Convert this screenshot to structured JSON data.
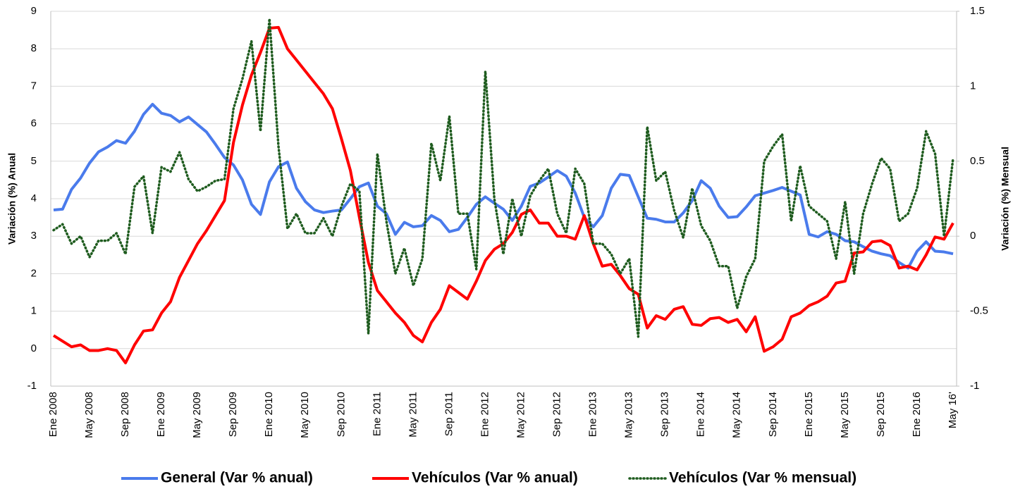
{
  "chart_data": {
    "type": "line",
    "categories": [
      "Ene 2008",
      null,
      null,
      null,
      "May 2008",
      null,
      null,
      null,
      "Sep 2008",
      null,
      null,
      null,
      "Ene 2009",
      null,
      null,
      null,
      "May 2009",
      null,
      null,
      null,
      "Sep 2009",
      null,
      null,
      null,
      "Ene 2010",
      null,
      null,
      null,
      "May 2010",
      null,
      null,
      null,
      "Sep 2010",
      null,
      null,
      null,
      "Ene 2011",
      null,
      null,
      null,
      "May 2011",
      null,
      null,
      null,
      "Sep 2011",
      null,
      null,
      null,
      "Ene 2012",
      null,
      null,
      null,
      "May 2012",
      null,
      null,
      null,
      "Sep 2012",
      null,
      null,
      null,
      "Ene 2013",
      null,
      null,
      null,
      "May 2013",
      null,
      null,
      null,
      "Sep 2013",
      null,
      null,
      null,
      "Ene 2014",
      null,
      null,
      null,
      "May 2014",
      null,
      null,
      null,
      "Sep 2014",
      null,
      null,
      null,
      "Ene 2015",
      null,
      null,
      null,
      "May 2015",
      null,
      null,
      null,
      "Sep 2015",
      null,
      null,
      null,
      "Ene 2016",
      null,
      null,
      null,
      "May 16'"
    ],
    "ylabel": "Variación (%) Anual",
    "y2label": "Variación (%) Mensual",
    "ylim": [
      -1,
      9
    ],
    "yticks": [
      -1,
      0,
      1,
      2,
      3,
      4,
      5,
      6,
      7,
      8,
      9
    ],
    "y2lim": [
      -1,
      1.5
    ],
    "y2ticks": [
      -1,
      -0.5,
      0,
      0.5,
      1,
      1.5
    ],
    "grid": true,
    "legend": "bottom",
    "series": [
      {
        "name": "General (Var % anual)",
        "color": "#4a7bec",
        "style": "solid",
        "values": [
          3.7,
          3.72,
          4.25,
          4.55,
          4.95,
          5.25,
          5.38,
          5.55,
          5.48,
          5.8,
          6.25,
          6.52,
          6.28,
          6.22,
          6.05,
          6.18,
          5.98,
          5.78,
          5.45,
          5.1,
          4.9,
          4.5,
          3.85,
          3.58,
          4.45,
          4.85,
          4.98,
          4.28,
          3.92,
          3.7,
          3.63,
          3.67,
          3.7,
          4.0,
          4.32,
          4.42,
          3.8,
          3.6,
          3.05,
          3.37,
          3.25,
          3.28,
          3.55,
          3.42,
          3.12,
          3.18,
          3.5,
          3.85,
          4.05,
          3.88,
          3.72,
          3.42,
          3.8,
          4.33,
          4.42,
          4.58,
          4.75,
          4.6,
          4.15,
          3.5,
          3.25,
          3.55,
          4.28,
          4.65,
          4.62,
          4.05,
          3.48,
          3.45,
          3.38,
          3.38,
          3.62,
          3.95,
          4.48,
          4.28,
          3.8,
          3.5,
          3.52,
          3.78,
          4.08,
          4.15,
          4.22,
          4.3,
          4.2,
          4.1,
          3.05,
          2.98,
          3.12,
          3.05,
          2.88,
          2.85,
          2.72,
          2.6,
          2.53,
          2.48,
          2.3,
          2.15,
          2.6,
          2.85,
          2.6,
          2.58,
          2.53
        ]
      },
      {
        "name": "Vehículos (Var % anual)",
        "color": "#ff0000",
        "style": "solid",
        "values": [
          0.35,
          0.2,
          0.05,
          0.1,
          -0.05,
          -0.05,
          0.0,
          -0.05,
          -0.38,
          0.1,
          0.47,
          0.5,
          0.95,
          1.25,
          1.9,
          2.35,
          2.8,
          3.15,
          3.55,
          3.95,
          5.5,
          6.5,
          7.3,
          7.9,
          8.55,
          8.57,
          8.0,
          7.7,
          7.4,
          7.1,
          6.8,
          6.4,
          5.6,
          4.75,
          3.5,
          2.3,
          1.55,
          1.25,
          0.95,
          0.7,
          0.35,
          0.18,
          0.7,
          1.05,
          1.68,
          1.5,
          1.32,
          1.8,
          2.35,
          2.65,
          2.8,
          3.1,
          3.58,
          3.7,
          3.35,
          3.35,
          3.0,
          3.0,
          2.92,
          3.55,
          2.8,
          2.2,
          2.25,
          1.95,
          1.6,
          1.45,
          0.55,
          0.88,
          0.78,
          1.05,
          1.12,
          0.65,
          0.62,
          0.8,
          0.83,
          0.7,
          0.78,
          0.45,
          0.85,
          -0.07,
          0.05,
          0.25,
          0.85,
          0.95,
          1.15,
          1.25,
          1.4,
          1.75,
          1.8,
          2.55,
          2.58,
          2.85,
          2.88,
          2.75,
          2.15,
          2.2,
          2.1,
          2.5,
          2.98,
          2.92,
          3.35
        ]
      },
      {
        "name": "Vehículos (Var % mensual)",
        "color": "#1f5c1f",
        "style": "dotted",
        "axis": "y2",
        "values": [
          0.04,
          0.08,
          -0.05,
          0.0,
          -0.14,
          -0.03,
          -0.03,
          0.02,
          -0.12,
          0.33,
          0.4,
          0.02,
          0.46,
          0.43,
          0.56,
          0.38,
          0.3,
          0.33,
          0.37,
          0.38,
          0.85,
          1.05,
          1.3,
          0.7,
          1.45,
          0.6,
          0.05,
          0.15,
          0.02,
          0.02,
          0.12,
          0.0,
          0.2,
          0.35,
          0.3,
          -0.65,
          0.55,
          0.1,
          -0.25,
          -0.08,
          -0.33,
          -0.15,
          0.62,
          0.37,
          0.8,
          0.15,
          0.15,
          -0.22,
          1.1,
          0.25,
          -0.12,
          0.25,
          0.0,
          0.27,
          0.37,
          0.45,
          0.15,
          0.02,
          0.45,
          0.35,
          -0.05,
          -0.05,
          -0.12,
          -0.25,
          -0.15,
          -0.67,
          0.73,
          0.37,
          0.43,
          0.17,
          -0.01,
          0.32,
          0.07,
          -0.03,
          -0.2,
          -0.2,
          -0.48,
          -0.27,
          -0.15,
          0.5,
          0.6,
          0.68,
          0.1,
          0.47,
          0.2,
          0.15,
          0.1,
          -0.15,
          0.23,
          -0.25,
          0.15,
          0.35,
          0.52,
          0.45,
          0.1,
          0.15,
          0.32,
          0.7,
          0.55,
          0.0,
          0.52
        ]
      }
    ]
  }
}
